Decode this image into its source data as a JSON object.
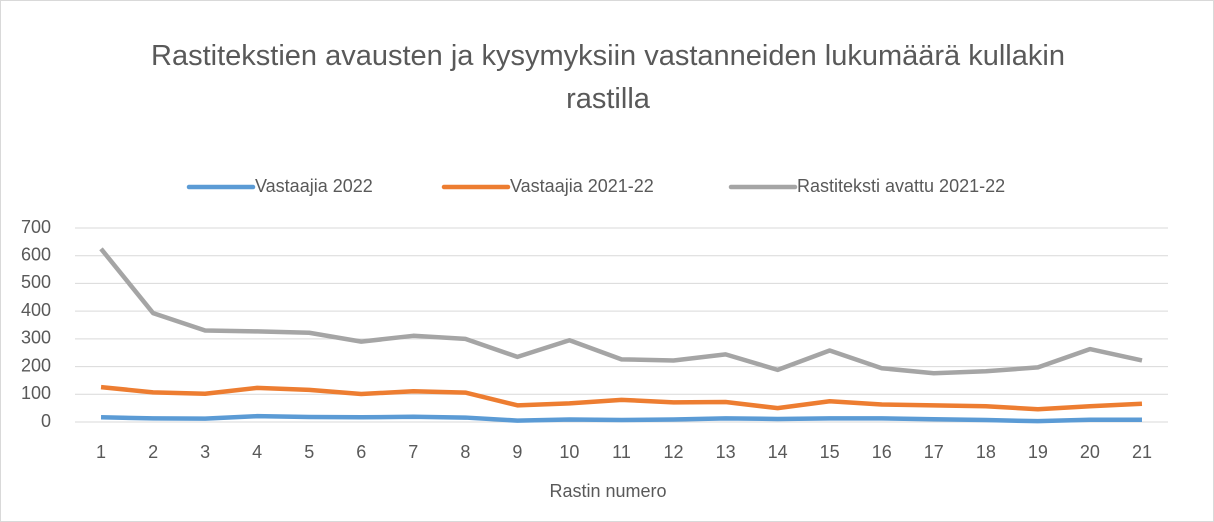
{
  "chart_data": {
    "type": "line",
    "title": "Rastitekstien avausten ja kysymyksiin vastanneiden lukumäärä kullakin rastilla",
    "x_label": "Rastin numero",
    "categories": [
      "1",
      "2",
      "3",
      "4",
      "5",
      "6",
      "7",
      "8",
      "9",
      "10",
      "11",
      "12",
      "13",
      "14",
      "15",
      "16",
      "17",
      "18",
      "19",
      "20",
      "21"
    ],
    "series": [
      {
        "name": "Vastaajia 2022",
        "color": "#5b9bd5",
        "values": [
          17,
          13,
          12,
          21,
          18,
          17,
          19,
          16,
          5,
          9,
          7,
          9,
          13,
          11,
          13,
          13,
          10,
          7,
          3,
          8,
          8
        ]
      },
      {
        "name": "Vastaajia 2021-22",
        "color": "#ed7d31",
        "values": [
          126,
          107,
          102,
          123,
          116,
          101,
          111,
          106,
          60,
          67,
          80,
          71,
          72,
          50,
          75,
          63,
          60,
          57,
          46,
          57,
          66
        ]
      },
      {
        "name": "Rastiteksti avattu 2021-22",
        "color": "#a5a5a5",
        "values": [
          625,
          393,
          330,
          327,
          322,
          290,
          311,
          300,
          235,
          295,
          226,
          222,
          244,
          188,
          258,
          194,
          176,
          183,
          197,
          263,
          222
        ]
      }
    ],
    "ylim": [
      0,
      700
    ],
    "yticks": [
      0,
      100,
      200,
      300,
      400,
      500,
      600,
      700
    ],
    "grid": true,
    "legend": "top"
  }
}
